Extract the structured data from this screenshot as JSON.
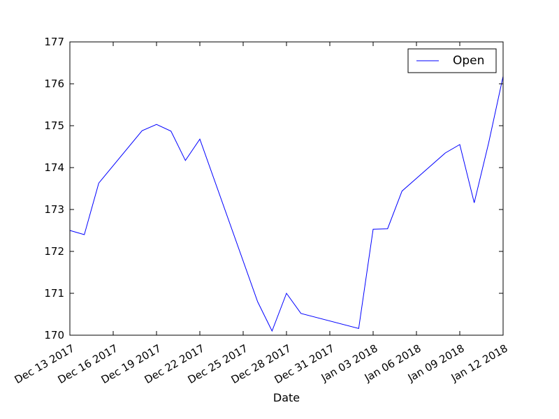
{
  "chart_data": {
    "type": "line",
    "title": "",
    "xlabel": "Date",
    "ylabel": "",
    "xlim": [
      "2017-12-13",
      "2018-01-12"
    ],
    "ylim": [
      170,
      177
    ],
    "x_ticks": [
      "2017-12-13",
      "2017-12-16",
      "2017-12-19",
      "2017-12-22",
      "2017-12-25",
      "2017-12-28",
      "2017-12-31",
      "2018-01-03",
      "2018-01-06",
      "2018-01-09",
      "2018-01-12"
    ],
    "x_tick_labels": [
      "Dec 13 2017",
      "Dec 16 2017",
      "Dec 19 2017",
      "Dec 22 2017",
      "Dec 25 2017",
      "Dec 28 2017",
      "Dec 31 2017",
      "Jan 03 2018",
      "Jan 06 2018",
      "Jan 09 2018",
      "Jan 12 2018"
    ],
    "y_ticks": [
      170,
      171,
      172,
      173,
      174,
      175,
      176,
      177
    ],
    "y_tick_labels": [
      "170",
      "171",
      "172",
      "173",
      "174",
      "175",
      "176",
      "177"
    ],
    "grid": false,
    "legend": "top-right",
    "series": [
      {
        "name": "Open",
        "color": "#0000ff",
        "points": [
          {
            "x": "2017-12-13",
            "y": 172.5
          },
          {
            "x": "2017-12-14",
            "y": 172.4
          },
          {
            "x": "2017-12-15",
            "y": 173.63
          },
          {
            "x": "2017-12-18",
            "y": 174.88
          },
          {
            "x": "2017-12-19",
            "y": 175.03
          },
          {
            "x": "2017-12-20",
            "y": 174.87
          },
          {
            "x": "2017-12-21",
            "y": 174.17
          },
          {
            "x": "2017-12-22",
            "y": 174.68
          },
          {
            "x": "2017-12-26",
            "y": 170.8
          },
          {
            "x": "2017-12-27",
            "y": 170.1
          },
          {
            "x": "2017-12-28",
            "y": 171.0
          },
          {
            "x": "2017-12-29",
            "y": 170.52
          },
          {
            "x": "2018-01-02",
            "y": 170.16
          },
          {
            "x": "2018-01-03",
            "y": 172.53
          },
          {
            "x": "2018-01-04",
            "y": 172.54
          },
          {
            "x": "2018-01-05",
            "y": 173.44
          },
          {
            "x": "2018-01-08",
            "y": 174.35
          },
          {
            "x": "2018-01-09",
            "y": 174.55
          },
          {
            "x": "2018-01-10",
            "y": 173.16
          },
          {
            "x": "2018-01-11",
            "y": 174.59
          },
          {
            "x": "2018-01-12",
            "y": 176.18
          }
        ]
      }
    ]
  }
}
